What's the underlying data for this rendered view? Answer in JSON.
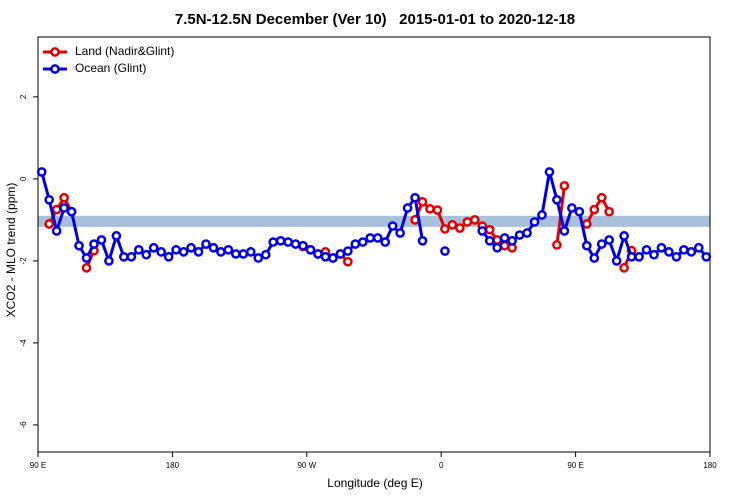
{
  "chart_data": {
    "type": "line",
    "title": "7.5N-12.5N December (Ver 10)   2015-01-01 to 2020-12-18",
    "x_label": "Longitude (deg E)",
    "y_label": "XCO2 - MLO trend (ppm)",
    "xlim": [
      90,
      540
    ],
    "ylim": [
      -6.66,
      3.46
    ],
    "xticks": [
      {
        "value": 90,
        "label": "90 E"
      },
      180,
      {
        "value": 270,
        "label": "90 W"
      },
      {
        "value": 360,
        "label": "0"
      },
      {
        "value": 450,
        "label": "90 E"
      },
      {
        "value": 540,
        "label": "180"
      }
    ],
    "yticks": [
      2,
      0,
      -2,
      -4,
      -6
    ],
    "band": [
      -1.17,
      -0.9
    ],
    "band_color": "#a9c0dd",
    "legend": "top-left",
    "x": [
      92.5,
      97.5,
      102.5,
      107.5,
      112.5,
      117.5,
      122.5,
      127.5,
      132.5,
      137.5,
      142.5,
      147.5,
      152.5,
      157.5,
      162.5,
      167.5,
      172.5,
      177.5,
      182.5,
      187.5,
      192.5,
      197.5,
      202.5,
      207.5,
      212.5,
      217.5,
      222.5,
      227.5,
      232.5,
      237.5,
      242.5,
      247.5,
      252.5,
      257.5,
      262.5,
      267.5,
      272.5,
      277.5,
      282.5,
      287.5,
      292.5,
      297.5,
      302.5,
      307.5,
      312.5,
      317.5,
      322.5,
      327.5,
      332.5,
      337.5,
      342.5,
      347.5,
      352.5,
      357.5,
      362.5,
      367.5,
      372.5,
      377.5,
      382.5,
      387.5,
      392.5,
      397.5,
      402.5,
      407.5,
      412.5,
      417.5,
      422.5,
      427.5,
      432.5,
      437.5,
      442.5,
      447.5,
      452.5,
      457.5,
      462.5,
      467.5,
      472.5,
      477.5,
      482.5,
      487.5,
      492.5,
      497.5,
      502.5,
      507.5,
      512.5,
      517.5,
      522.5,
      527.5,
      532.5,
      537.5
    ],
    "series": [
      {
        "name": "Land (Nadir&Glint)",
        "color": "#e00000",
        "values": [
          null,
          -1.1,
          -0.75,
          -0.46,
          -0.8,
          null,
          -2.17,
          -1.75,
          null,
          null,
          null,
          null,
          null,
          null,
          null,
          null,
          null,
          null,
          null,
          null,
          null,
          null,
          null,
          null,
          null,
          null,
          null,
          null,
          null,
          null,
          null,
          null,
          null,
          null,
          null,
          -1.65,
          -1.73,
          -1.83,
          -1.78,
          -1.93,
          -1.83,
          -2.02,
          null,
          null,
          null,
          null,
          null,
          null,
          null,
          null,
          -1.0,
          -0.56,
          -0.73,
          -0.76,
          -1.22,
          -1.12,
          -1.2,
          -1.05,
          -1.0,
          -1.15,
          -1.24,
          -1.49,
          -1.63,
          -1.68,
          null,
          null,
          null,
          null,
          null,
          -1.61,
          -0.17,
          null,
          null,
          -1.1,
          -0.75,
          -0.46,
          -0.8,
          null,
          -2.17,
          -1.75,
          null,
          null,
          null,
          null,
          null,
          null,
          null,
          null,
          null,
          null
        ]
      },
      {
        "name": "Ocean (Glint)",
        "color": "#0000e0",
        "values": [
          0.17,
          -0.51,
          -1.27,
          -0.71,
          -0.8,
          -1.63,
          -1.93,
          -1.59,
          -1.49,
          -2.0,
          -1.39,
          -1.9,
          -1.9,
          -1.73,
          -1.85,
          -1.68,
          -1.78,
          -1.9,
          -1.73,
          -1.78,
          -1.68,
          -1.78,
          -1.59,
          -1.68,
          -1.78,
          -1.73,
          -1.83,
          -1.83,
          -1.78,
          -1.93,
          -1.85,
          -1.54,
          -1.51,
          -1.54,
          -1.59,
          -1.63,
          -1.73,
          -1.83,
          -1.9,
          -1.93,
          -1.83,
          -1.76,
          -1.59,
          -1.54,
          -1.44,
          -1.44,
          -1.54,
          -1.15,
          -1.32,
          -0.71,
          -0.46,
          -1.51,
          null,
          null,
          -1.76,
          null,
          null,
          null,
          null,
          -1.27,
          -1.51,
          -1.68,
          -1.44,
          -1.51,
          -1.37,
          -1.32,
          -1.05,
          -0.88,
          0.17,
          -0.51,
          -1.27,
          -0.71,
          -0.8,
          -1.63,
          -1.93,
          -1.59,
          -1.49,
          -2.0,
          -1.39,
          -1.9,
          -1.9,
          -1.73,
          -1.85,
          -1.68,
          -1.78,
          -1.9,
          -1.73,
          -1.78,
          -1.68,
          -1.9
        ]
      }
    ]
  }
}
